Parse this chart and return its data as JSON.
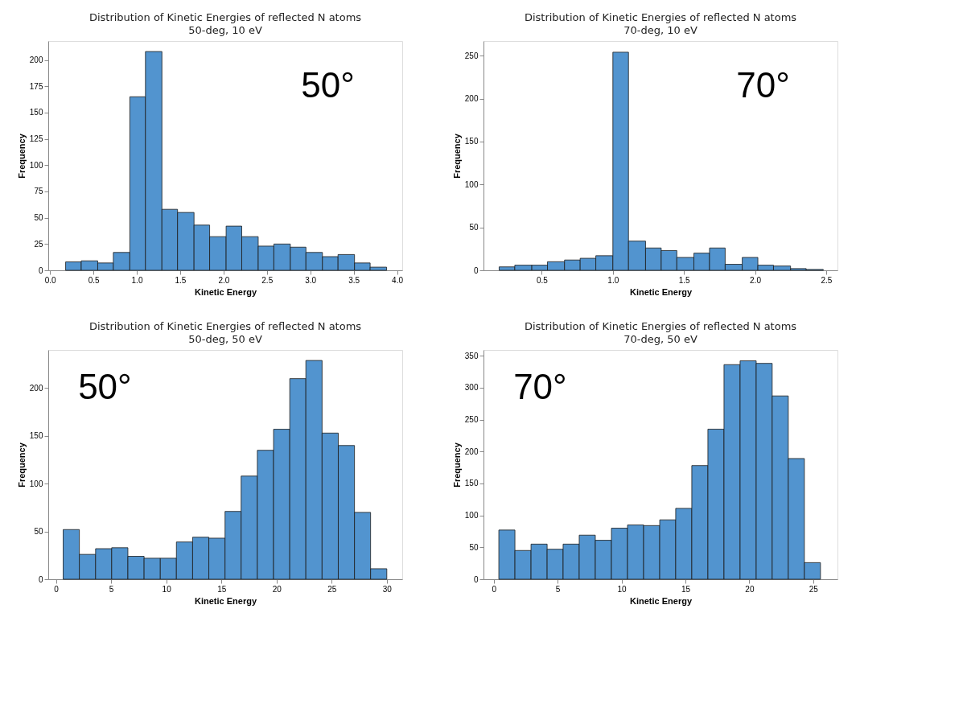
{
  "chart_data": [
    {
      "type": "histogram",
      "title": "Distribution of Kinetic Energies of reflected N atoms",
      "subtitle": "50-deg, 10 eV",
      "xlabel": "Kinetic Energy",
      "ylabel": "Frequency",
      "color": "#5294cf",
      "grid": false,
      "bins": [
        0.18,
        0.36,
        0.55,
        0.73,
        0.92,
        1.1,
        1.29,
        1.47,
        1.66,
        1.84,
        2.03,
        2.21,
        2.4,
        2.58,
        2.77,
        2.95,
        3.14,
        3.32,
        3.51,
        3.69,
        3.88
      ],
      "values": [
        8,
        9,
        7,
        17,
        165,
        208,
        58,
        55,
        43,
        32,
        42,
        32,
        23,
        25,
        22,
        17,
        13,
        15,
        7,
        3
      ],
      "xlim": [
        -0.02,
        4.06
      ],
      "ylim": [
        0,
        218
      ],
      "xticks": [
        {
          "value": 0,
          "label": "0.0"
        },
        0.5,
        {
          "value": 1,
          "label": "1.0"
        },
        1.5,
        {
          "value": 2,
          "label": "2.0"
        },
        2.5,
        {
          "value": 3,
          "label": "3.0"
        },
        3.5,
        {
          "value": 4,
          "label": "4.0"
        }
      ],
      "yticks": [
        0,
        25,
        50,
        75,
        100,
        125,
        150,
        175,
        200
      ],
      "annotations": [
        "50°"
      ]
    },
    {
      "type": "histogram",
      "title": "Distribution of Kinetic Energies of reflected N atoms",
      "subtitle": "70-deg, 10 eV",
      "xlabel": "Kinetic Energy",
      "ylabel": "Frequency",
      "color": "#5294cf",
      "grid": false,
      "bins": [
        0.2,
        0.31,
        0.43,
        0.54,
        0.66,
        0.77,
        0.88,
        1.0,
        1.11,
        1.23,
        1.34,
        1.45,
        1.57,
        1.68,
        1.79,
        1.91,
        2.02,
        2.13,
        2.25,
        2.36,
        2.48
      ],
      "values": [
        4,
        6,
        6,
        10,
        12,
        14,
        17,
        254,
        34,
        26,
        23,
        15,
        20,
        26,
        7,
        15,
        6,
        5,
        2,
        1
      ],
      "xlim": [
        0.09,
        2.58
      ],
      "ylim": [
        0,
        267
      ],
      "xticks": [
        0.5,
        {
          "value": 1,
          "label": "1.0"
        },
        1.5,
        {
          "value": 2,
          "label": "2.0"
        },
        2.5
      ],
      "yticks": [
        0,
        50,
        100,
        150,
        200,
        250
      ],
      "annotations": [
        "70°"
      ]
    },
    {
      "type": "histogram",
      "title": "Distribution of Kinetic Energies of reflected N atoms",
      "subtitle": "50-deg, 50 eV",
      "xlabel": "Kinetic Energy",
      "ylabel": "Frequency",
      "color": "#5294cf",
      "grid": false,
      "bins": [
        0.65,
        2.12,
        3.59,
        5.05,
        6.52,
        7.99,
        9.46,
        10.92,
        12.39,
        13.86,
        15.33,
        16.79,
        18.26,
        19.73,
        21.2,
        22.66,
        24.13,
        25.6,
        27.07,
        28.53,
        30.0
      ],
      "values": [
        52,
        26,
        32,
        33,
        24,
        22,
        22,
        39,
        44,
        43,
        71,
        108,
        135,
        157,
        210,
        229,
        153,
        140,
        70,
        11
      ],
      "xlim": [
        -0.7,
        31.4
      ],
      "ylim": [
        0,
        240
      ],
      "xticks": [
        0,
        5,
        10,
        15,
        20,
        25,
        30
      ],
      "yticks": [
        0,
        50,
        100,
        150,
        200
      ],
      "annotations": [
        "50°"
      ]
    },
    {
      "type": "histogram",
      "title": "Distribution of Kinetic Energies of reflected N atoms",
      "subtitle": "70-deg, 50 eV",
      "xlabel": "Kinetic Energy",
      "ylabel": "Frequency",
      "color": "#5294cf",
      "grid": false,
      "bins": [
        0.4,
        1.66,
        2.92,
        4.18,
        5.43,
        6.69,
        7.95,
        9.21,
        10.47,
        11.73,
        12.99,
        14.24,
        15.5,
        16.76,
        18.02,
        19.28,
        20.54,
        21.79,
        23.05,
        24.31,
        25.57
      ],
      "values": [
        77,
        45,
        55,
        47,
        55,
        69,
        61,
        80,
        85,
        84,
        93,
        111,
        178,
        235,
        336,
        342,
        338,
        287,
        189,
        26
      ],
      "xlim": [
        -0.8,
        26.9
      ],
      "ylim": [
        0,
        359
      ],
      "xticks": [
        0,
        5,
        10,
        15,
        20,
        25
      ],
      "yticks": [
        0,
        50,
        100,
        150,
        200,
        250,
        300,
        350
      ],
      "annotations": [
        "70°"
      ]
    }
  ]
}
